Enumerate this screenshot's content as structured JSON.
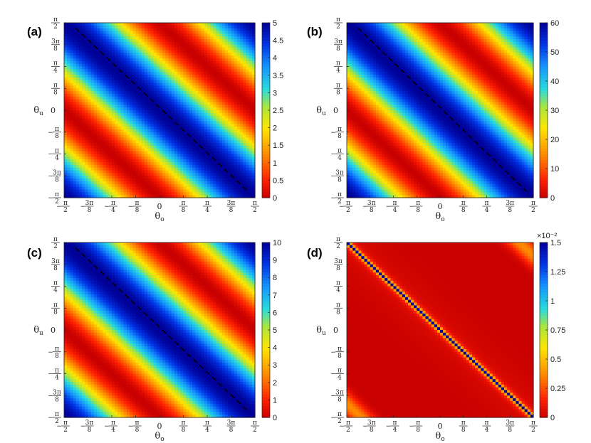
{
  "chart_data": [
    {
      "panel": "(a)",
      "type": "heatmap",
      "xlabel": "θ_o",
      "ylabel": "θ_u",
      "xlim": [
        -1.5708,
        1.5708
      ],
      "ylim": [
        -1.5708,
        1.5708
      ],
      "ticks": [
        "-π/2",
        "-3π/8",
        "-π/4",
        "-π/8",
        "0",
        "π/8",
        "π/4",
        "3π/8",
        "π/2"
      ],
      "colorbar": {
        "min": 0,
        "max": 5,
        "ticks": [
          "0",
          "0.5",
          "1",
          "1.5",
          "2",
          "2.5",
          "3",
          "3.5",
          "4",
          "4.5",
          "5"
        ],
        "exponent": ""
      },
      "pattern": "sinusoidal",
      "dashed_line": true
    },
    {
      "panel": "(b)",
      "type": "heatmap",
      "xlabel": "θ_o",
      "ylabel": "θ_u",
      "xlim": [
        -1.5708,
        1.5708
      ],
      "ylim": [
        -1.5708,
        1.5708
      ],
      "ticks": [
        "-π/2",
        "-3π/8",
        "-π/4",
        "-π/8",
        "0",
        "π/8",
        "π/4",
        "3π/8",
        "π/2"
      ],
      "colorbar": {
        "min": 0,
        "max": 60,
        "ticks": [
          "0",
          "10",
          "20",
          "30",
          "40",
          "50",
          "60"
        ],
        "exponent": ""
      },
      "pattern": "sinusoidal",
      "dashed_line": true
    },
    {
      "panel": "(c)",
      "type": "heatmap",
      "xlabel": "θ_o",
      "ylabel": "θ_u",
      "xlim": [
        -1.5708,
        1.5708
      ],
      "ylim": [
        -1.5708,
        1.5708
      ],
      "ticks": [
        "-π/2",
        "-3π/8",
        "-π/4",
        "-π/8",
        "0",
        "π/8",
        "π/4",
        "3π/8",
        "π/2"
      ],
      "colorbar": {
        "min": 0,
        "max": 10,
        "ticks": [
          "0",
          "1",
          "2",
          "3",
          "4",
          "5",
          "6",
          "7",
          "8",
          "9",
          "10"
        ],
        "exponent": ""
      },
      "pattern": "sinusoidal",
      "dashed_line": true
    },
    {
      "panel": "(d)",
      "type": "heatmap",
      "xlabel": "θ_o",
      "ylabel": "θ_u",
      "xlim": [
        -1.5708,
        1.5708
      ],
      "ylim": [
        -1.5708,
        1.5708
      ],
      "ticks": [
        "-π/2",
        "-3π/8",
        "-π/4",
        "-π/8",
        "0",
        "π/8",
        "π/4",
        "3π/8",
        "π/2"
      ],
      "colorbar": {
        "min": 0,
        "max": 1.5,
        "ticks": [
          "0",
          "0.25",
          "0.5",
          "0.75",
          "1",
          "1.25",
          "1.5"
        ],
        "exponent": "×10⁻²"
      },
      "pattern": "peaked",
      "dashed_line": false
    }
  ]
}
